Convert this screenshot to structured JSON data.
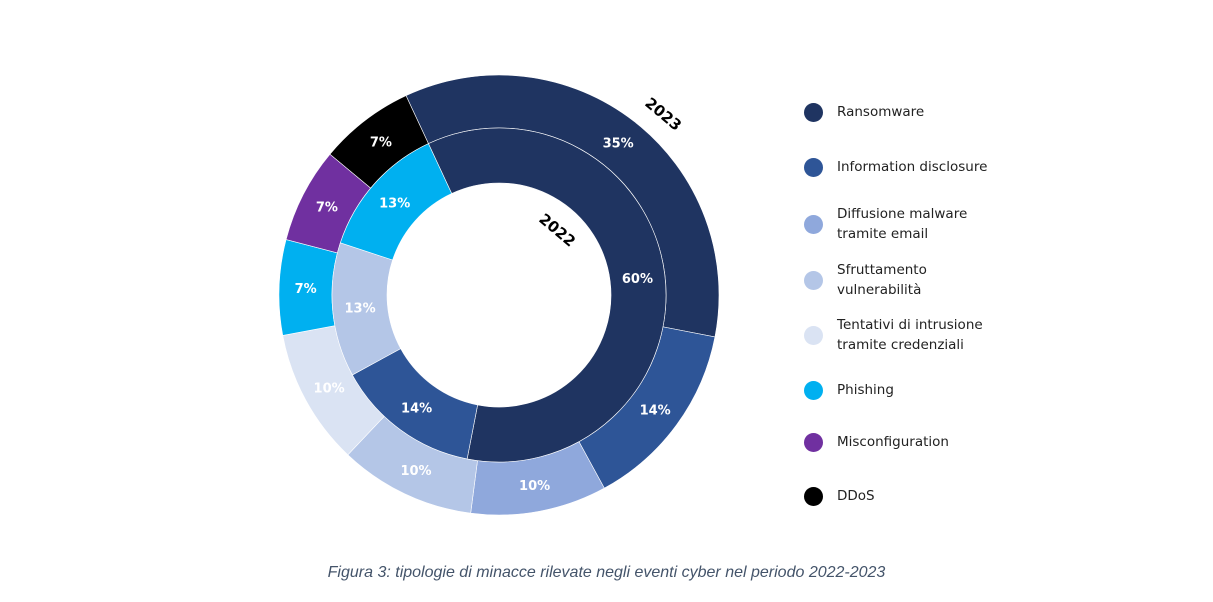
{
  "chart_data": {
    "type": "donut",
    "categories": [
      "Ransomware",
      "Information disclosure",
      "Diffusione malware\ntramite email",
      "Sfruttamento\nvulnerabilità",
      "Tentativi di intrusione\ntramite credenziali",
      "Phishing",
      "Misconfiguration",
      "DDoS"
    ],
    "colors": [
      "#1f3461",
      "#2e5597",
      "#8fa8dc",
      "#b4c6e7",
      "#dae3f3",
      "#00b0f0",
      "#7030a0",
      "#000000"
    ],
    "series": [
      {
        "name": "2023",
        "ring": "outer",
        "values": [
          35,
          14,
          10,
          10,
          10,
          7,
          7,
          7
        ]
      },
      {
        "name": "2022",
        "ring": "inner",
        "values": [
          60,
          14,
          0,
          13,
          0,
          13,
          0,
          0
        ]
      }
    ],
    "legend_position": "right"
  },
  "caption": "Figura 3: tipologie di minacce rilevate negli eventi cyber nel periodo 2022-2023"
}
